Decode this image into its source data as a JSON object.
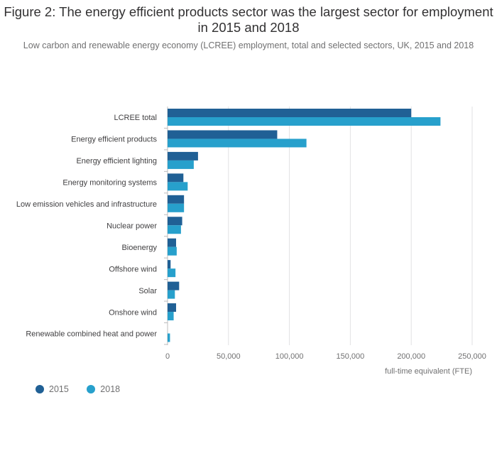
{
  "chart_data": {
    "type": "bar",
    "orientation": "horizontal",
    "title": "Figure 2: The energy efficient products sector was the largest sector for employment in 2015 and 2018",
    "subtitle": "Low carbon and renewable energy economy (LCREE) employment, total and selected sectors, UK, 2015 and 2018",
    "xlabel": "full-time equivalent (FTE)",
    "ylabel": "",
    "xlim": [
      0,
      250000
    ],
    "x_ticks": [
      0,
      50000,
      100000,
      150000,
      200000,
      250000
    ],
    "x_tick_labels": [
      "0",
      "50,000",
      "100,000",
      "150,000",
      "200,000",
      "250,000"
    ],
    "grid": true,
    "legend_position": "bottom-left",
    "categories": [
      "LCREE total",
      "Energy efficient products",
      "Energy efficient lighting",
      "Energy monitoring systems",
      "Low emission vehicles and infrastructure",
      "Nuclear power",
      "Bioenergy",
      "Offshore wind",
      "Solar",
      "Onshore wind",
      "Renewable combined heat and power"
    ],
    "series": [
      {
        "name": "2015",
        "color": "#206095",
        "values": [
          200000,
          90000,
          25000,
          13000,
          13500,
          12000,
          7000,
          2500,
          9500,
          7000,
          0
        ]
      },
      {
        "name": "2018",
        "color": "#27a0cc",
        "values": [
          224000,
          114000,
          21500,
          16500,
          13500,
          11000,
          7500,
          6500,
          6000,
          5000,
          2000
        ]
      }
    ]
  }
}
